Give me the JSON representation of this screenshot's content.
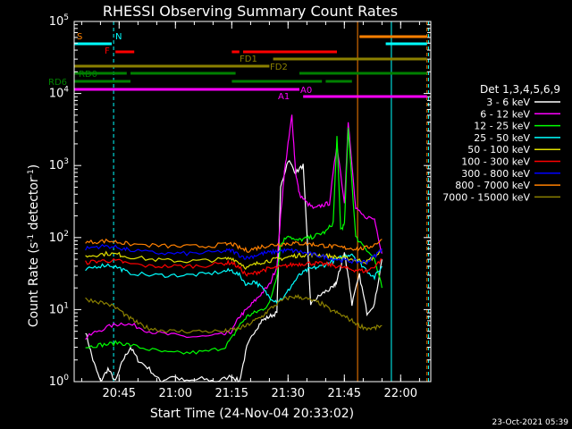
{
  "chart_data": {
    "type": "line",
    "title": "RHESSI Observing Summary Count Rates",
    "xlabel": "Start Time (24-Nov-04 20:33:02)",
    "ylabel_parts": [
      "Count Rate (s",
      "-1",
      " detector",
      "-1",
      ")"
    ],
    "y_scale": "log",
    "ylim": [
      1,
      100000
    ],
    "y_ticks": [
      {
        "value": 1,
        "base": "10",
        "exp": "0"
      },
      {
        "value": 10,
        "base": "10",
        "exp": "1"
      },
      {
        "value": 100,
        "base": "10",
        "exp": "2"
      },
      {
        "value": 1000,
        "base": "10",
        "exp": "3"
      },
      {
        "value": 10000,
        "base": "10",
        "exp": "4"
      },
      {
        "value": 100000,
        "base": "10",
        "exp": "5"
      }
    ],
    "xlim_minutes_after_start": [
      0,
      95
    ],
    "x_ticks": [
      {
        "label": "20:45",
        "t": 11.97
      },
      {
        "label": "21:00",
        "t": 26.97
      },
      {
        "label": "21:15",
        "t": 41.97
      },
      {
        "label": "21:30",
        "t": 56.97
      },
      {
        "label": "21:45",
        "t": 71.97
      },
      {
        "label": "22:00",
        "t": 86.97
      }
    ],
    "legend_title": "Det 1,3,4,5,6,9",
    "legend_placement": "right",
    "series": [
      {
        "name": "3 - 6 keV",
        "color": "#ffffff",
        "x": [
          3,
          5,
          7,
          9,
          11,
          13,
          15,
          17,
          20,
          23,
          26,
          30,
          34,
          38,
          42,
          44,
          46,
          48,
          50,
          52,
          54,
          55,
          57,
          59,
          61,
          63,
          65,
          67,
          69,
          70,
          71,
          72,
          73,
          74,
          76,
          78,
          80,
          82
        ],
        "y": [
          5,
          2,
          1,
          1.5,
          1,
          2,
          3,
          2,
          1.5,
          1,
          1.2,
          1,
          1.1,
          1,
          1.2,
          1,
          3,
          5,
          7,
          8,
          9,
          500,
          1200,
          800,
          1000,
          12,
          15,
          18,
          20,
          25,
          40,
          60,
          30,
          12,
          30,
          9,
          12,
          50
        ]
      },
      {
        "name": "6 - 12 keV",
        "color": "#ff00ff",
        "x": [
          3,
          6,
          10,
          13,
          16,
          20,
          25,
          30,
          35,
          40,
          42,
          44,
          46,
          48,
          50,
          52,
          54,
          55,
          56,
          57,
          58,
          59,
          60,
          62,
          64,
          66,
          68,
          70,
          72,
          73,
          75,
          77,
          80,
          82
        ],
        "y": [
          4,
          5,
          6,
          6.5,
          6,
          5,
          4.5,
          4.2,
          4.2,
          4.5,
          5,
          8,
          10,
          13,
          17,
          22,
          40,
          200,
          800,
          2000,
          5000,
          800,
          400,
          300,
          250,
          280,
          300,
          2000,
          300,
          4000,
          250,
          200,
          180,
          60
        ]
      },
      {
        "name": "12 - 25 keV",
        "color": "#00ff00",
        "x": [
          3,
          6,
          9,
          12,
          15,
          20,
          25,
          30,
          35,
          40,
          42,
          44,
          46,
          48,
          50,
          52,
          54,
          55,
          57,
          59,
          61,
          63,
          65,
          67,
          69,
          70,
          71,
          72,
          73,
          75,
          77,
          80,
          82
        ],
        "y": [
          3,
          3.2,
          3.3,
          3.5,
          3.2,
          2.8,
          2.5,
          2.5,
          2.6,
          3,
          4,
          6,
          8,
          9,
          10,
          12,
          30,
          80,
          110,
          90,
          95,
          100,
          110,
          120,
          160,
          2500,
          130,
          150,
          3500,
          100,
          80,
          50,
          20
        ]
      },
      {
        "name": "25 - 50 keV",
        "color": "#00ffff",
        "x": [
          3,
          6,
          9,
          12,
          14,
          20,
          25,
          30,
          35,
          40,
          42,
          44,
          46,
          48,
          50,
          52,
          54,
          56,
          58,
          60,
          62,
          64,
          66,
          68,
          70,
          72,
          74,
          76,
          78,
          80,
          82
        ],
        "y": [
          35,
          40,
          42,
          38,
          33,
          30,
          30,
          30,
          31,
          34,
          35,
          30,
          22,
          25,
          20,
          15,
          13,
          15,
          22,
          30,
          35,
          38,
          40,
          45,
          50,
          55,
          60,
          45,
          35,
          28,
          40
        ]
      },
      {
        "name": "50 - 100 keV",
        "color": "#e0e000",
        "x": [
          3,
          6,
          9,
          12,
          14,
          20,
          25,
          30,
          35,
          40,
          42,
          44,
          46,
          48,
          50,
          52,
          54,
          56,
          58,
          60,
          62,
          64,
          66,
          68,
          70,
          72,
          74,
          76,
          78,
          80,
          82
        ],
        "y": [
          55,
          58,
          60,
          58,
          55,
          50,
          48,
          47,
          48,
          50,
          52,
          45,
          38,
          42,
          46,
          48,
          50,
          52,
          55,
          57,
          58,
          58,
          57,
          55,
          53,
          52,
          50,
          48,
          46,
          55,
          65
        ]
      },
      {
        "name": "100 - 300 keV",
        "color": "#ff0000",
        "x": [
          3,
          6,
          9,
          12,
          14,
          20,
          25,
          30,
          35,
          40,
          42,
          44,
          46,
          48,
          50,
          52,
          54,
          56,
          58,
          60,
          62,
          64,
          66,
          68,
          70,
          72,
          74,
          76,
          78,
          80,
          82
        ],
        "y": [
          45,
          47,
          48,
          47,
          44,
          40,
          40,
          40,
          41,
          44,
          45,
          38,
          30,
          32,
          35,
          37,
          38,
          40,
          42,
          43,
          44,
          44,
          43,
          42,
          40,
          38,
          36,
          35,
          34,
          40,
          50
        ]
      },
      {
        "name": "300 - 800 keV",
        "color": "#0000ff",
        "x": [
          3,
          6,
          9,
          12,
          14,
          20,
          25,
          30,
          35,
          40,
          42,
          44,
          46,
          48,
          50,
          52,
          54,
          56,
          58,
          60,
          62,
          64,
          66,
          68,
          70,
          72,
          74,
          76,
          78,
          80,
          82
        ],
        "y": [
          70,
          75,
          76,
          72,
          68,
          62,
          60,
          60,
          61,
          65,
          66,
          57,
          52,
          56,
          60,
          62,
          64,
          66,
          66,
          64,
          60,
          58,
          55,
          52,
          50,
          48,
          47,
          46,
          46,
          55,
          70
        ]
      },
      {
        "name": "800 - 7000 keV",
        "color": "#ff8000",
        "x": [
          3,
          6,
          9,
          12,
          14,
          20,
          25,
          30,
          35,
          40,
          42,
          44,
          46,
          48,
          50,
          52,
          54,
          56,
          58,
          60,
          62,
          64,
          66,
          68,
          70,
          72,
          74,
          76,
          78,
          80,
          82
        ],
        "y": [
          85,
          88,
          90,
          86,
          82,
          78,
          76,
          75,
          76,
          80,
          82,
          72,
          66,
          70,
          75,
          78,
          80,
          82,
          83,
          83,
          82,
          80,
          78,
          76,
          74,
          72,
          71,
          70,
          72,
          80,
          95
        ]
      },
      {
        "name": "7000 - 15000 keV",
        "color": "#8b8000",
        "x": [
          3,
          6,
          9,
          12,
          14,
          16,
          18,
          20,
          23,
          26,
          30,
          35,
          40,
          42,
          44,
          46,
          48,
          50,
          52,
          54,
          56,
          58,
          60,
          62,
          64,
          66,
          68,
          70,
          72,
          74,
          76,
          78,
          80,
          82
        ],
        "y": [
          14,
          13,
          12,
          10,
          8,
          7,
          6,
          5.5,
          5.2,
          5,
          5,
          5,
          5,
          5.2,
          5.5,
          6,
          7,
          8,
          10,
          12,
          14,
          15,
          15,
          14,
          13,
          12,
          10,
          9,
          8,
          7,
          6,
          5.5,
          5.5,
          6
        ]
      }
    ],
    "annotations": [
      {
        "text": "S",
        "color": "#ff8000"
      },
      {
        "text": "N",
        "color": "#00ffff"
      },
      {
        "text": "F",
        "color": "#ff0000"
      },
      {
        "text": "FD1",
        "color": "#8b8000"
      },
      {
        "text": "FD2",
        "color": "#8b8000"
      },
      {
        "text": "RD0",
        "color": "#008000"
      },
      {
        "text": "RD6",
        "color": "#008000"
      },
      {
        "text": "A0",
        "color": "#ff00ff"
      },
      {
        "text": "A1",
        "color": "#ff00ff"
      }
    ],
    "grid": false
  },
  "footer": {
    "timestamp": "23-Oct-2021 05:39"
  },
  "colors": {
    "background": "#000000",
    "axes": "#ffffff"
  }
}
